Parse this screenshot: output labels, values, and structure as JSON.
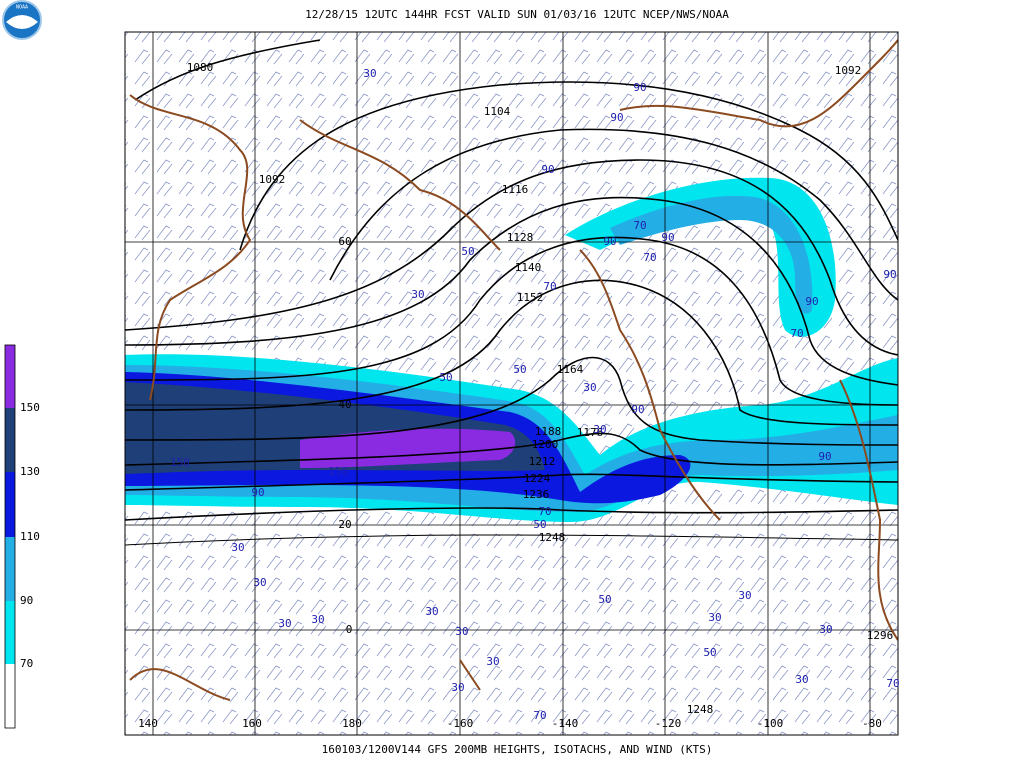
{
  "logo": {
    "text": "NOAA"
  },
  "header": {
    "title": "12/28/15 12UTC  144HR  FCST VALID SUN 01/03/16 12UTC  NCEP/NWS/NOAA"
  },
  "footer": {
    "caption": "160103/1200V144 GFS 200MB HEIGHTS, ISOTACHS, AND WIND (KTS)"
  },
  "colorbar": {
    "labels": [
      "150",
      "130",
      "110",
      "90",
      "70"
    ]
  },
  "grid": {
    "lat_labels": [
      "60",
      "40",
      "20",
      "0"
    ],
    "lon_labels": [
      "140",
      "160",
      "180",
      "-160",
      "-140",
      "-120",
      "-100",
      "-80"
    ]
  },
  "contour_labels": [
    "1080",
    "1092",
    "1104",
    "1116",
    "1128",
    "1140",
    "1152",
    "1164",
    "1176",
    "1188",
    "1200",
    "1212",
    "1224",
    "1236",
    "1248",
    "1092",
    "1296",
    "1248"
  ],
  "isotach_labels": [
    "30",
    "90",
    "90",
    "90",
    "70",
    "70",
    "90",
    "90",
    "70",
    "50",
    "50",
    "30",
    "50",
    "30",
    "90",
    "90",
    "90",
    "70",
    "90",
    "30",
    "150",
    "150",
    "90",
    "70",
    "50",
    "30",
    "30",
    "30",
    "30",
    "50",
    "30",
    "30",
    "30",
    "30",
    "30",
    "50",
    "30",
    "70",
    "30",
    "30",
    "70"
  ]
}
